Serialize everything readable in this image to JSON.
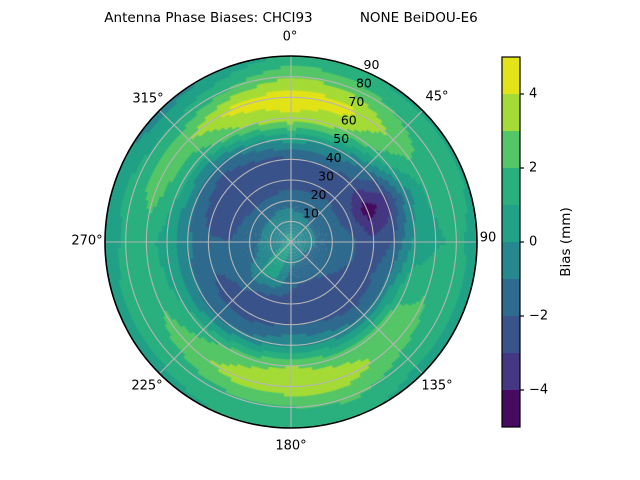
{
  "title": "Antenna Phase Biases: CHCI93           NONE BeiDOU-E6",
  "chart_data": {
    "type": "polar_contour",
    "title": "Antenna Phase Biases: CHCI93           NONE BeiDOU-E6",
    "angular_unit": "degrees (azimuth, clockwise from top)",
    "angular_ticks": [
      {
        "az": 0,
        "label": "0°"
      },
      {
        "az": 45,
        "label": "45°"
      },
      {
        "az": 90,
        "label": "90"
      },
      {
        "az": 135,
        "label": "135°"
      },
      {
        "az": 180,
        "label": "180°"
      },
      {
        "az": 225,
        "label": "225°"
      },
      {
        "az": 270,
        "label": "270°"
      },
      {
        "az": 315,
        "label": "315°"
      }
    ],
    "radial_ticks": [
      10,
      20,
      30,
      40,
      50,
      60,
      70,
      80,
      90
    ],
    "radial_max": 90,
    "grid_on": true,
    "grid_color": "#b5b5b5",
    "outline_color": "#000000",
    "grid": {
      "azimuths_deg": [
        0,
        22.5,
        45,
        67.5,
        90,
        112.5,
        135,
        157.5,
        180,
        202.5,
        225,
        247.5,
        270,
        292.5,
        315,
        337.5
      ],
      "radii": [
        0,
        10,
        20,
        30,
        40,
        50,
        60,
        70,
        80,
        90
      ],
      "bias_mm": [
        [
          0.3,
          -0.4,
          -1.4,
          -2.6,
          -2.3,
          0.5,
          3.8,
          4.6,
          3.0,
          1.2
        ],
        [
          0.2,
          -0.6,
          -1.5,
          -2.4,
          -2.0,
          0.0,
          3.2,
          4.4,
          2.6,
          1.0
        ],
        [
          0.1,
          -0.8,
          -1.6,
          -2.2,
          -2.4,
          -1.0,
          1.8,
          2.8,
          1.8,
          0.8
        ],
        [
          0.0,
          -0.9,
          -1.5,
          -2.5,
          -4.6,
          -3.5,
          -0.5,
          1.2,
          1.6,
          0.9
        ],
        [
          -0.2,
          -0.9,
          -1.3,
          -1.8,
          -2.8,
          -2.0,
          0.2,
          0.8,
          1.2,
          0.7
        ],
        [
          -0.3,
          -1.0,
          -1.5,
          -2.0,
          -2.4,
          -0.8,
          1.6,
          2.0,
          1.6,
          0.6
        ],
        [
          -0.3,
          -1.2,
          -1.8,
          -2.4,
          -2.8,
          -1.0,
          2.8,
          2.4,
          1.6,
          0.4
        ],
        [
          -0.2,
          -1.0,
          -2.0,
          -2.8,
          -2.2,
          -0.5,
          2.5,
          3.6,
          2.2,
          1.3
        ],
        [
          0.1,
          -0.8,
          -1.8,
          -2.5,
          -2.0,
          0.0,
          3.0,
          3.8,
          2.0,
          1.4
        ],
        [
          0.3,
          0.3,
          0.0,
          -2.6,
          -2.4,
          -0.8,
          2.6,
          3.5,
          1.8,
          1.0
        ],
        [
          0.3,
          0.3,
          0.1,
          -1.8,
          -2.6,
          -1.2,
          1.5,
          2.6,
          1.5,
          0.7
        ],
        [
          0.2,
          -0.3,
          -1.2,
          -1.8,
          -2.0,
          -1.0,
          0.8,
          1.8,
          1.6,
          0.6
        ],
        [
          0.1,
          -0.5,
          -1.4,
          -2.0,
          -1.8,
          -0.8,
          0.5,
          1.4,
          1.2,
          0.5
        ],
        [
          0.2,
          -0.6,
          -1.5,
          -2.4,
          -2.6,
          -1.0,
          1.2,
          2.6,
          1.4,
          0.3
        ],
        [
          0.3,
          -0.5,
          -1.5,
          -2.8,
          -3.0,
          -1.5,
          1.5,
          2.9,
          1.0,
          -0.6
        ],
        [
          0.3,
          -0.4,
          -1.4,
          -2.7,
          -2.5,
          -0.5,
          3.0,
          4.4,
          2.0,
          0.2
        ]
      ]
    },
    "colorbar": {
      "label": "Bias (mm)",
      "range": [
        -5,
        5
      ],
      "ticks": [
        {
          "v": 4,
          "label": "4"
        },
        {
          "v": 2,
          "label": "2"
        },
        {
          "v": 0,
          "label": "0"
        },
        {
          "v": -2,
          "label": "−2"
        },
        {
          "v": -4,
          "label": "−4"
        }
      ],
      "band_colors": [
        "#460b5e",
        "#453781",
        "#3b538b",
        "#2f6b8e",
        "#26878e",
        "#21a186",
        "#2ab07f",
        "#55c667",
        "#a5db36",
        "#e2e318"
      ],
      "colormap": "viridis"
    }
  }
}
